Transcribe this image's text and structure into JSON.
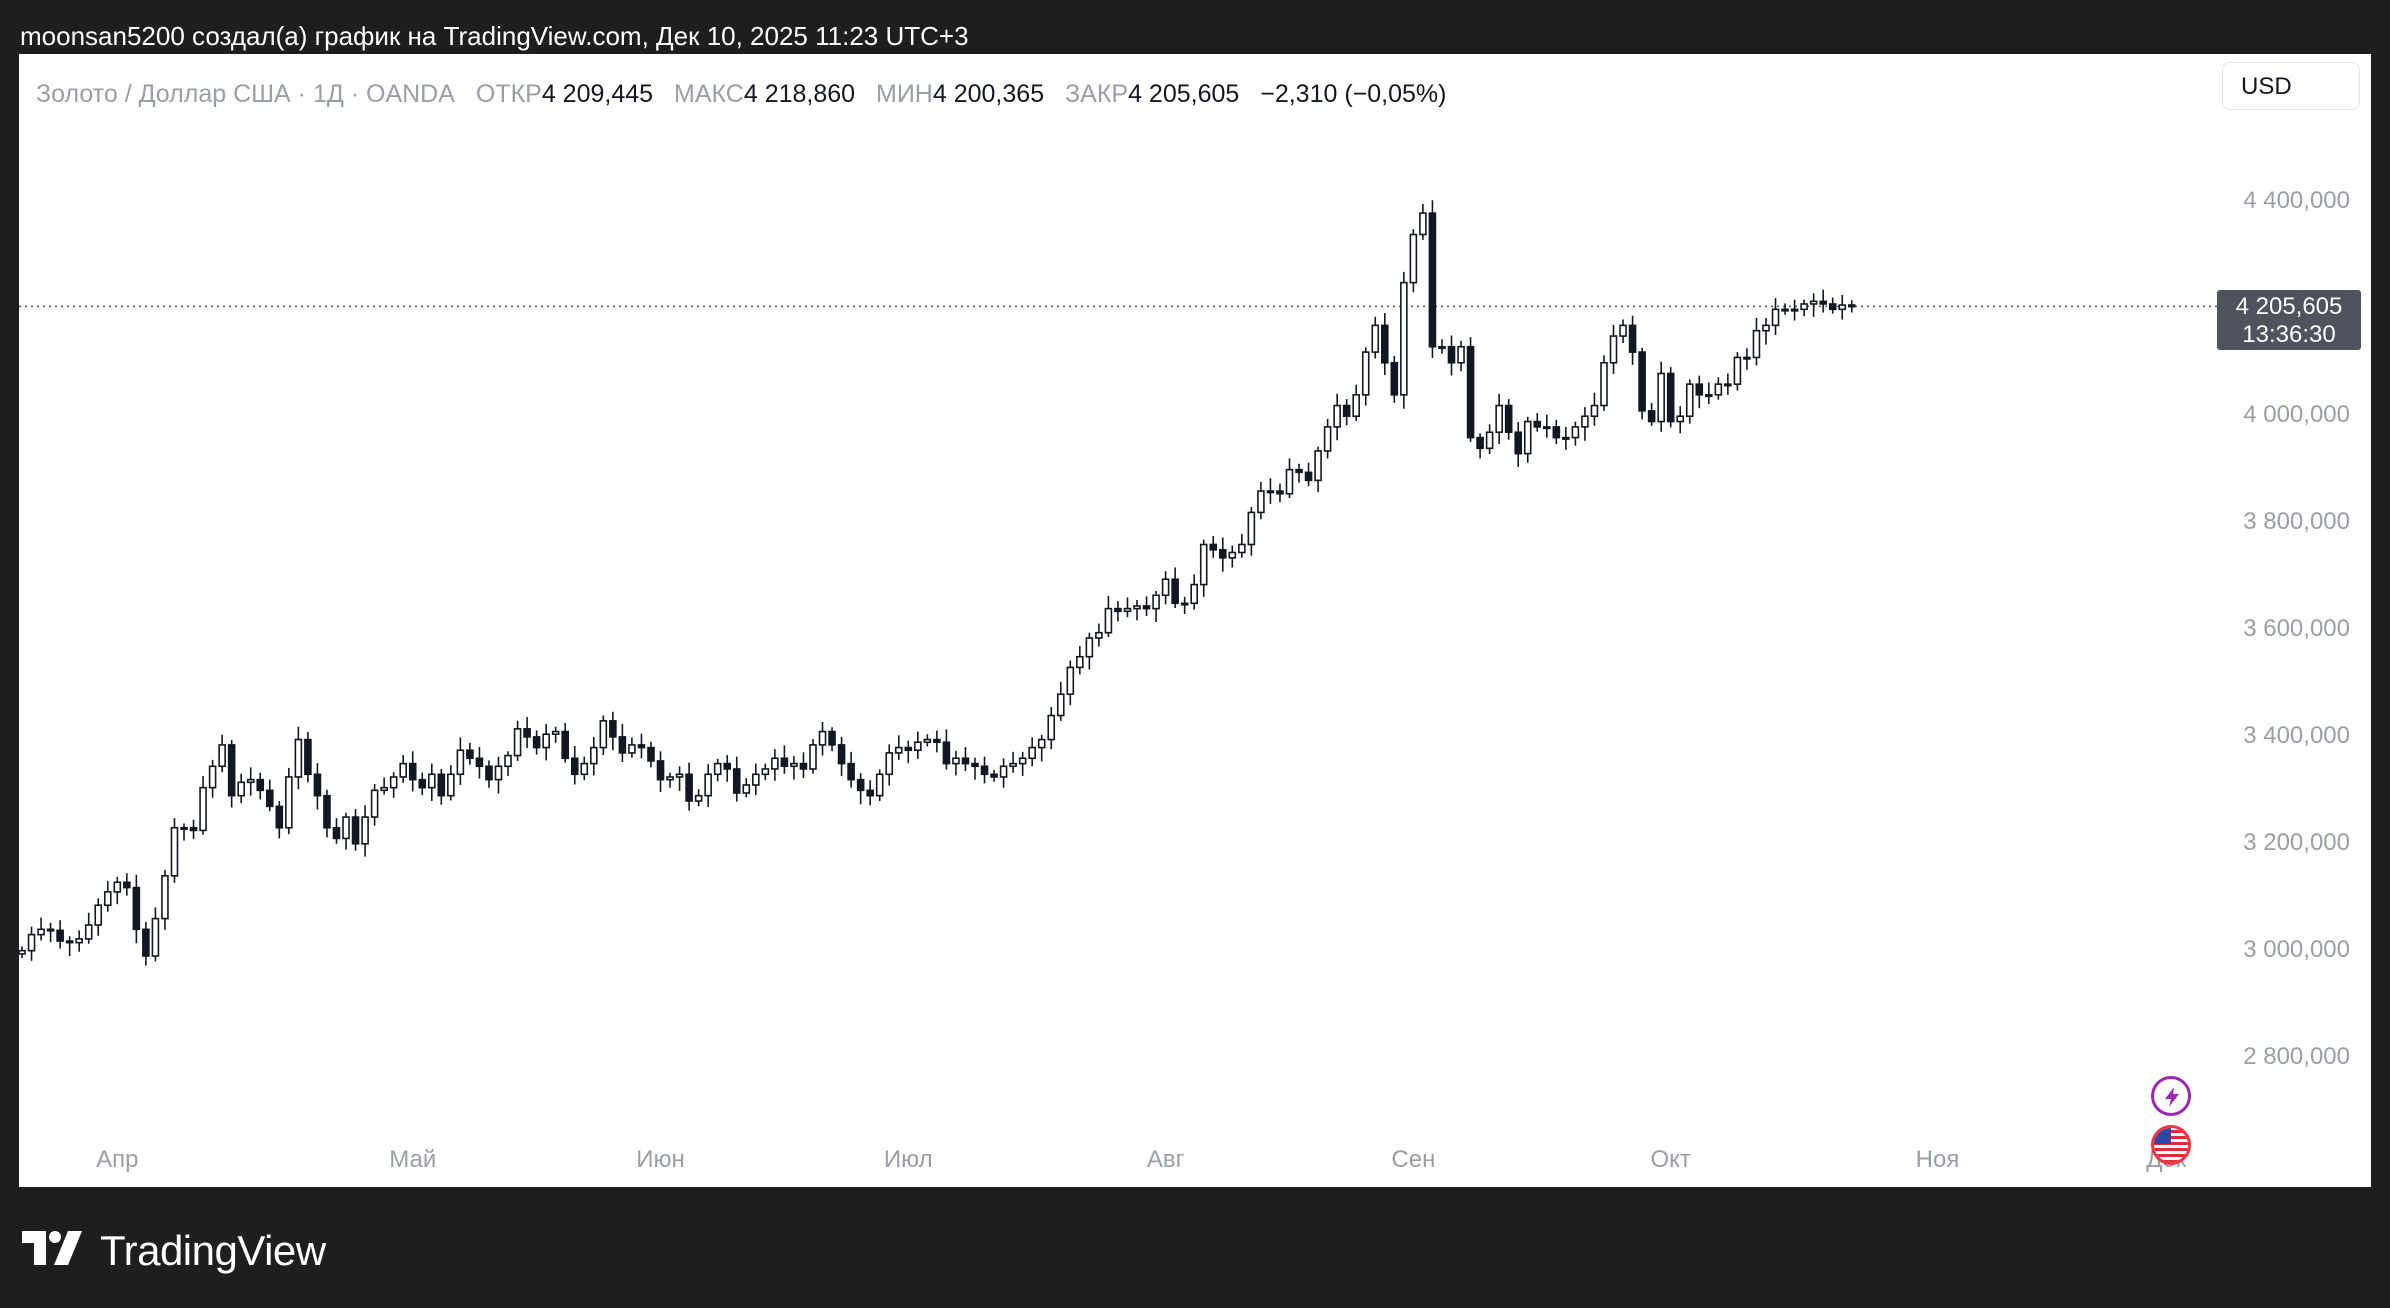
{
  "caption": "moonsan5200 создал(а) график на TradingView.com, Дек 10, 2025 11:23 UTC+3",
  "legend": {
    "symbol": "Золото / Доллар США · 1Д · OANDA",
    "open_label": "ОТКР",
    "open_value": "4 209,445",
    "high_label": "МАКС",
    "high_value": "4 218,860",
    "low_label": "МИН",
    "low_value": "4 200,365",
    "close_label": "ЗАКР",
    "close_value": "4 205,605",
    "change": "−2,310 (−0,05%)"
  },
  "currency_button": "USD",
  "price_label": {
    "price": "4 205,605",
    "countdown": "13:36:30"
  },
  "brand": "TradingView",
  "icons": {
    "lightning": "lightning-icon",
    "flag": "us-flag-icon",
    "logo": "tradingview-logo-icon"
  },
  "colors": {
    "background": "#1e1e1e",
    "chart_bg": "#ffffff",
    "candle_up": "#ffffff",
    "candle_down": "#131722",
    "axis_text": "#9a9ea6",
    "price_label_bg": "#4f535e"
  },
  "chart_data": {
    "type": "candlestick",
    "title": "Золото / Доллар США · 1Д · OANDA",
    "xlabel": "",
    "ylabel": "",
    "ylim": [
      2700,
      4500
    ],
    "yticks": [
      {
        "value": 2800,
        "label": "2 800,000"
      },
      {
        "value": 3000,
        "label": "3 000,000"
      },
      {
        "value": 3200,
        "label": "3 200,000"
      },
      {
        "value": 3400,
        "label": "3 400,000"
      },
      {
        "value": 3600,
        "label": "3 600,000"
      },
      {
        "value": 3800,
        "label": "3 800,000"
      },
      {
        "value": 4000,
        "label": "4 000,000"
      },
      {
        "value": 4200,
        "label": "4 200,000"
      },
      {
        "value": 4400,
        "label": "4 400,000"
      }
    ],
    "xticks": [
      {
        "label": "Апр",
        "index": 10
      },
      {
        "label": "Май",
        "index": 41
      },
      {
        "label": "Июн",
        "index": 67
      },
      {
        "label": "Июл",
        "index": 93
      },
      {
        "label": "Авг",
        "index": 120
      },
      {
        "label": "Сен",
        "index": 146
      },
      {
        "label": "Окт",
        "index": 173
      },
      {
        "label": "Ноя",
        "index": 201
      },
      {
        "label": "Дек",
        "index": 225
      }
    ],
    "last_price": 4205.605,
    "grid": false,
    "closes": [
      3000,
      3030,
      3040,
      3038,
      3018,
      3015,
      3022,
      3048,
      3085,
      3110,
      3128,
      3118,
      3040,
      2990,
      3060,
      3140,
      3230,
      3230,
      3225,
      3305,
      3345,
      3385,
      3290,
      3315,
      3320,
      3300,
      3270,
      3230,
      3325,
      3395,
      3330,
      3290,
      3230,
      3210,
      3250,
      3200,
      3250,
      3300,
      3305,
      3325,
      3350,
      3320,
      3305,
      3330,
      3290,
      3330,
      3375,
      3360,
      3345,
      3320,
      3345,
      3365,
      3415,
      3400,
      3380,
      3405,
      3410,
      3360,
      3330,
      3350,
      3380,
      3430,
      3400,
      3370,
      3385,
      3380,
      3355,
      3320,
      3325,
      3330,
      3280,
      3290,
      3330,
      3350,
      3340,
      3295,
      3310,
      3330,
      3340,
      3360,
      3345,
      3350,
      3340,
      3385,
      3410,
      3385,
      3350,
      3320,
      3300,
      3290,
      3330,
      3370,
      3380,
      3375,
      3390,
      3395,
      3390,
      3350,
      3360,
      3350,
      3345,
      3330,
      3325,
      3345,
      3350,
      3360,
      3380,
      3395,
      3440,
      3480,
      3530,
      3550,
      3585,
      3595,
      3640,
      3635,
      3640,
      3645,
      3640,
      3665,
      3695,
      3650,
      3650,
      3685,
      3760,
      3750,
      3735,
      3745,
      3760,
      3820,
      3860,
      3860,
      3855,
      3900,
      3895,
      3880,
      3935,
      3980,
      4020,
      4000,
      4040,
      4120,
      4170,
      4100,
      4040,
      4250,
      4340,
      4380,
      4130,
      4130,
      4100,
      4130,
      3960,
      3940,
      3970,
      4020,
      3970,
      3930,
      3990,
      3980,
      3980,
      3960,
      3960,
      3980,
      4000,
      4020,
      4100,
      4150,
      4170,
      4120,
      4010,
      3990,
      4080,
      3990,
      4000,
      4060,
      4040,
      4040,
      4060,
      4060,
      4110,
      4110,
      4160,
      4170,
      4200,
      4200,
      4200,
      4210,
      4215,
      4210,
      4200,
      4208,
      4205
    ]
  }
}
